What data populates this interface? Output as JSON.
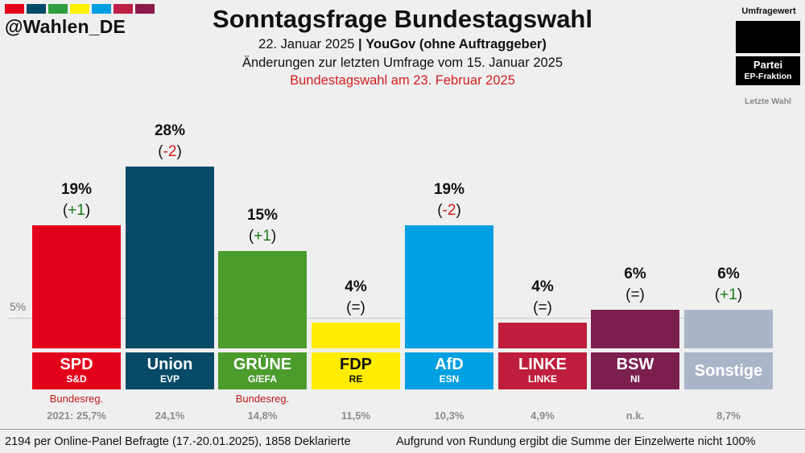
{
  "brand": {
    "handle": "@Wahlen_DE",
    "stripe_colors": [
      "#e3001b",
      "#004b6a",
      "#2e9f41",
      "#fff200",
      "#009ee0",
      "#be2045",
      "#8b1a4a"
    ]
  },
  "header": {
    "title": "Sonntagsfrage Bundestagswahl",
    "date": "22. Januar 2025",
    "separator": "|",
    "institute": "YouGov (ohne Auftraggeber)",
    "changes_note": "Änderungen zur letzten Umfrage vom 15. Januar 2025",
    "election_note": "Bundestagswahl am 23. Februar 2025"
  },
  "legend": {
    "value_label": "Umfragewert",
    "party_label": "Partei",
    "fraction_label": "EP-Fraktion",
    "last_election_label": "Letzte Wahl"
  },
  "reference": {
    "label": "5%"
  },
  "chart_data": {
    "type": "bar",
    "title": "Sonntagsfrage Bundestagswahl",
    "categories": [
      "SPD",
      "Union",
      "GRÜNE",
      "FDP",
      "AfD",
      "LINKE",
      "BSW",
      "Sonstige"
    ],
    "values": [
      19,
      28,
      15,
      4,
      19,
      4,
      6,
      6
    ],
    "ylim": [
      0,
      30
    ],
    "threshold": 5,
    "bars": [
      {
        "party": "SPD",
        "fraction": "S&D",
        "value": 19,
        "value_label": "19%",
        "change": "+1",
        "change_color": "#1a7a1a",
        "color": "#e3001b",
        "label_color": "#ffffff",
        "government": "Bundesreg.",
        "last_election": "2021: 25,7%"
      },
      {
        "party": "Union",
        "fraction": "EVP",
        "value": 28,
        "value_label": "28%",
        "change": "-2",
        "change_color": "#d21f1f",
        "color": "#064a67",
        "label_color": "#ffffff",
        "government": "",
        "last_election": "24,1%"
      },
      {
        "party": "GRÜNE",
        "fraction": "G/EFA",
        "value": 15,
        "value_label": "15%",
        "change": "+1",
        "change_color": "#1a7a1a",
        "color": "#4b9b2d",
        "label_color": "#ffffff",
        "government": "Bundesreg.",
        "last_election": "14,8%"
      },
      {
        "party": "FDP",
        "fraction": "RE",
        "value": 4,
        "value_label": "4%",
        "change": "=",
        "change_color": "#111111",
        "color": "#ffec00",
        "label_color": "#111111",
        "government": "",
        "last_election": "11,5%"
      },
      {
        "party": "AfD",
        "fraction": "ESN",
        "value": 19,
        "value_label": "19%",
        "change": "-2",
        "change_color": "#d21f1f",
        "color": "#00a0e2",
        "label_color": "#ffffff",
        "government": "",
        "last_election": "10,3%"
      },
      {
        "party": "LINKE",
        "fraction": "LINKE",
        "value": 4,
        "value_label": "4%",
        "change": "=",
        "change_color": "#111111",
        "color": "#be1e3c",
        "label_color": "#ffffff",
        "government": "",
        "last_election": "4,9%"
      },
      {
        "party": "BSW",
        "fraction": "NI",
        "value": 6,
        "value_label": "6%",
        "change": "=",
        "change_color": "#111111",
        "color": "#7b1f4f",
        "label_color": "#ffffff",
        "government": "",
        "last_election": "n.k."
      },
      {
        "party": "Sonstige",
        "fraction": "",
        "value": 6,
        "value_label": "6%",
        "change": "+1",
        "change_color": "#1a7a1a",
        "color": "#aab5c9",
        "label_color": "#ffffff",
        "government": "",
        "last_election": "8,7%"
      }
    ]
  },
  "footer": {
    "sample": "2194 per Online-Panel Befragte (17.-20.01.2025), 1858 Deklarierte",
    "rounding_note": "Aufgrund von Rundung ergibt die Summe der Einzelwerte nicht 100%"
  }
}
